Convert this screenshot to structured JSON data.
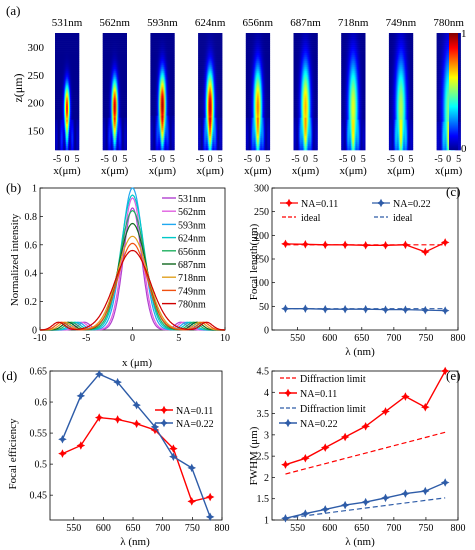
{
  "panel_labels": [
    "(a)",
    "(b)",
    "(c)",
    "(d)",
    "(e)"
  ],
  "chart_data": [
    {
      "id": "a",
      "type": "heatmap",
      "wavelengths": [
        "531nm",
        "562nm",
        "593nm",
        "624nm",
        "656nm",
        "687nm",
        "718nm",
        "749nm",
        "780nm"
      ],
      "peak_intensity": [
        0.86,
        0.93,
        0.97,
        0.93,
        0.75,
        0.7,
        0.6,
        0.55,
        0.5
      ],
      "focus_z": [
        190,
        192,
        195,
        192,
        192,
        192,
        190,
        188,
        186
      ],
      "ylabel": "z(μm)",
      "xlabel": "x(μm)",
      "xticks": [
        "-5",
        "0",
        "5"
      ],
      "yticks": [
        150,
        200,
        250,
        300
      ],
      "ylim": [
        115,
        325
      ],
      "colorbar_ticks": [
        "1",
        "0"
      ],
      "colormap": [
        "#00008f",
        "#0000ff",
        "#00ffff",
        "#ffff00",
        "#ff0000",
        "#800000"
      ]
    },
    {
      "id": "b",
      "type": "line",
      "xlabel": "x (μm)",
      "ylabel": "Normalized intensity",
      "xlim": [
        -10,
        10
      ],
      "ylim": [
        0,
        1
      ],
      "xticks": [
        -10,
        -5,
        0,
        5,
        10
      ],
      "yticks": [
        0,
        0.2,
        0.4,
        0.6,
        0.8,
        1
      ],
      "ytick_labels": [
        "0",
        "0.2",
        "0.4",
        "0.6",
        "0.8",
        "1"
      ],
      "legend_position": "right",
      "series": [
        {
          "name": "531nm",
          "peak": 0.86,
          "fwhm": 2.3,
          "color": "#b040d0"
        },
        {
          "name": "562nm",
          "peak": 0.93,
          "fwhm": 2.45,
          "color": "#e060e0"
        },
        {
          "name": "593nm",
          "peak": 1.0,
          "fwhm": 2.7,
          "color": "#20a8f0"
        },
        {
          "name": "624nm",
          "peak": 0.95,
          "fwhm": 2.95,
          "color": "#00c8c8"
        },
        {
          "name": "656nm",
          "peak": 0.84,
          "fwhm": 3.2,
          "color": "#20b060"
        },
        {
          "name": "687nm",
          "peak": 0.75,
          "fwhm": 3.5,
          "color": "#106820"
        },
        {
          "name": "718nm",
          "peak": 0.66,
          "fwhm": 3.85,
          "color": "#e0a020"
        },
        {
          "name": "749nm",
          "peak": 0.61,
          "fwhm": 3.7,
          "color": "#f05010"
        },
        {
          "name": "780nm",
          "peak": 0.56,
          "fwhm": 4.5,
          "color": "#d00000"
        }
      ]
    },
    {
      "id": "c",
      "type": "line",
      "xlabel": "λ (nm)",
      "ylabel": "Focal length(μm)",
      "xlim": [
        510,
        800
      ],
      "ylim": [
        0,
        300
      ],
      "xticks": [
        550,
        600,
        650,
        700,
        750,
        800
      ],
      "yticks": [
        0,
        50,
        100,
        150,
        200,
        250,
        300
      ],
      "x": [
        531,
        562,
        593,
        624,
        656,
        687,
        718,
        749,
        780
      ],
      "legend_position": "top",
      "series": [
        {
          "name": "NA=0.11",
          "values": [
            182,
            181,
            180,
            180,
            179,
            179,
            180,
            165,
            185
          ],
          "ideal": 180,
          "ideal_name": "ideal",
          "color": "#ff0000"
        },
        {
          "name": "NA=0.22",
          "values": [
            45,
            45,
            44,
            44,
            44,
            43,
            43,
            42,
            41
          ],
          "ideal": 45,
          "ideal_name": "ideal",
          "color": "#2e5ca8"
        }
      ]
    },
    {
      "id": "d",
      "type": "line",
      "xlabel": "λ (nm)",
      "ylabel": "Focal efficiency",
      "xlim": [
        510,
        800
      ],
      "ylim": [
        0.41,
        0.65
      ],
      "xticks": [
        550,
        600,
        650,
        700,
        750,
        800
      ],
      "yticks": [
        0.45,
        0.5,
        0.55,
        0.6,
        0.65
      ],
      "ytick_labels": [
        "0.45",
        "0.5",
        "0.55",
        "0.6",
        "0.65"
      ],
      "x": [
        531,
        562,
        593,
        624,
        656,
        687,
        718,
        749,
        780
      ],
      "legend_position": "top-right",
      "series": [
        {
          "name": "NA=0.11",
          "values": [
            0.517,
            0.53,
            0.575,
            0.572,
            0.565,
            0.555,
            0.525,
            0.44,
            0.447
          ],
          "color": "#ff0000"
        },
        {
          "name": "NA=0.22",
          "values": [
            0.54,
            0.61,
            0.645,
            0.632,
            0.595,
            0.56,
            0.512,
            0.494,
            0.415
          ],
          "color": "#2e5ca8"
        }
      ]
    },
    {
      "id": "e",
      "type": "line",
      "xlabel": "λ (nm)",
      "ylabel": "FWHM (μm)",
      "xlim": [
        510,
        800
      ],
      "ylim": [
        1,
        4.5
      ],
      "xticks": [
        550,
        600,
        650,
        700,
        750,
        800
      ],
      "yticks": [
        1,
        1.5,
        2,
        2.5,
        3,
        3.5,
        4,
        4.5
      ],
      "ytick_labels": [
        "1",
        "1.5",
        "2",
        "2.5",
        "3",
        "3.5",
        "4",
        "4.5"
      ],
      "x": [
        531,
        562,
        593,
        624,
        656,
        687,
        718,
        749,
        780
      ],
      "legend_position": "top-left",
      "series": [
        {
          "name": "NA=0.11",
          "values": [
            2.3,
            2.45,
            2.7,
            2.95,
            3.2,
            3.55,
            3.9,
            3.65,
            4.5
          ],
          "limit_name": "Diffraction limit",
          "limit": [
            2.08,
            3.06
          ],
          "color": "#ff0000"
        },
        {
          "name": "NA=0.22",
          "values": [
            1.04,
            1.15,
            1.25,
            1.35,
            1.42,
            1.52,
            1.62,
            1.68,
            1.88
          ],
          "limit_name": "Diffraction limit",
          "limit": [
            1.04,
            1.52
          ],
          "color": "#2e5ca8"
        }
      ]
    }
  ]
}
